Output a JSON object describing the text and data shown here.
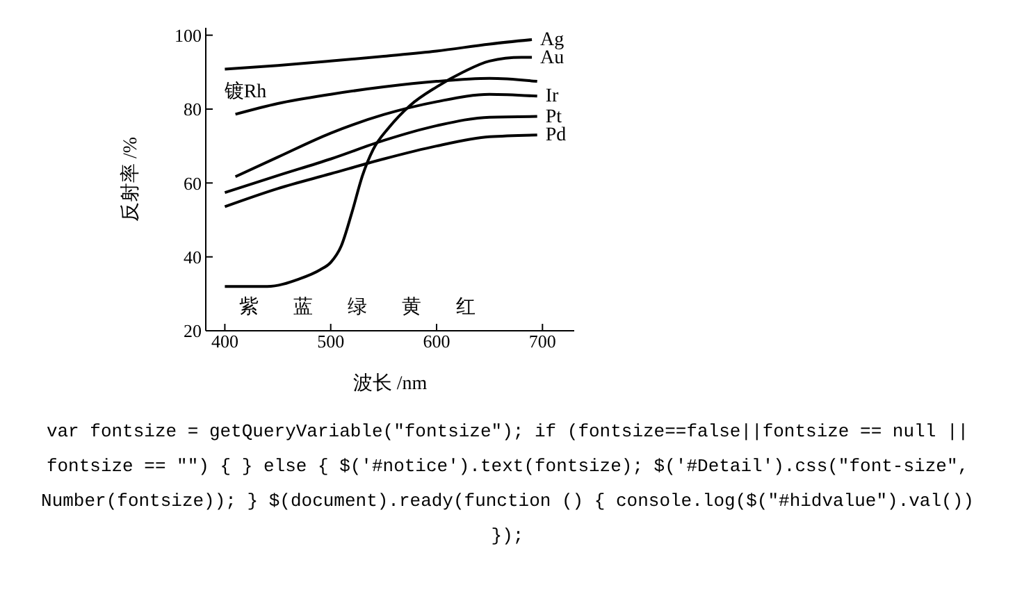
{
  "chart_data": {
    "type": "line",
    "xlabel": "波长 /nm",
    "ylabel": "反射率 /%",
    "xlim": [
      382,
      730
    ],
    "ylim": [
      20,
      102
    ],
    "xticks": [
      400,
      500,
      600,
      700
    ],
    "yticks": [
      20,
      40,
      60,
      80,
      100
    ],
    "grid": false,
    "legend": false,
    "marker": "none",
    "line_style": "solid",
    "series": [
      {
        "name": "Ag",
        "color": "#000000",
        "x": [
          400,
          450,
          500,
          550,
          600,
          650,
          690
        ],
        "values": [
          90.8,
          91.8,
          93,
          94.3,
          95.7,
          97.6,
          98.8
        ]
      },
      {
        "name": "Au",
        "color": "#000000",
        "x": [
          400,
          440,
          470,
          490,
          500,
          510,
          520,
          530,
          540,
          555,
          575,
          600,
          625,
          650,
          680,
          690
        ],
        "values": [
          32,
          32,
          34,
          36.5,
          38.5,
          43,
          52,
          62,
          69,
          75,
          81,
          86,
          90,
          93,
          94,
          94
        ]
      },
      {
        "name": "Ir",
        "color": "#000000",
        "x": [
          410,
          450,
          500,
          550,
          600,
          650,
          695
        ],
        "values": [
          61.7,
          67,
          73.5,
          78.5,
          82,
          84,
          83.5
        ]
      },
      {
        "name": "Pt",
        "color": "#000000",
        "x": [
          400,
          450,
          500,
          550,
          600,
          650,
          695
        ],
        "values": [
          57.4,
          62,
          66.5,
          71.5,
          75.5,
          77.8,
          78
        ]
      },
      {
        "name": "Pd",
        "color": "#000000",
        "x": [
          400,
          450,
          500,
          550,
          600,
          650,
          695
        ],
        "values": [
          53.6,
          58.5,
          62.5,
          66.5,
          70,
          72.5,
          73
        ]
      },
      {
        "name": "镀Rh",
        "color": "#000000",
        "x": [
          410,
          450,
          500,
          550,
          600,
          650,
          695
        ],
        "values": [
          78.6,
          81.5,
          84,
          86,
          87.5,
          88.3,
          87.5
        ]
      }
    ],
    "annotations": [
      "紫",
      "蓝",
      "绿",
      "黄",
      "红",
      "var fontsize = getQueryVariable(\"fontsize\"); if (fontsize==false||fontsize == null || fontsize == \"\") { } else { $('#notice').text(fontsize); $('#Detail').css(\"font-size\", Number(fontsize)); } $(document).ready(function () { console.log($(\"#hidvalue\").val()) });"
    ]
  }
}
